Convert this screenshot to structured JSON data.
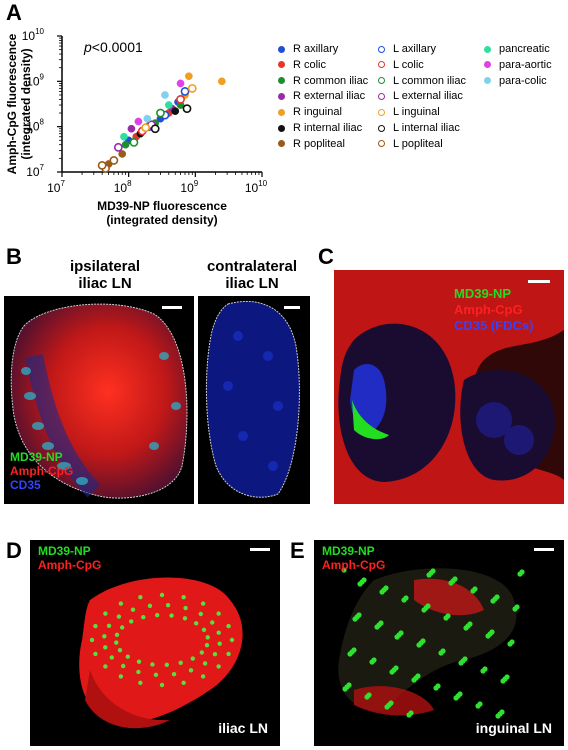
{
  "panels": {
    "A": "A",
    "B": "B",
    "C": "C",
    "D": "D",
    "E": "E"
  },
  "chart_data": {
    "type": "scatter",
    "xlabel": "MD39-NP fluorescence\n(integrated density)",
    "ylabel": "Amph-CpG fluorescence\n(integrated density)",
    "xlabel_lines": [
      "MD39-NP fluorescence",
      "(integrated density)"
    ],
    "ylabel_lines": [
      "Amph-CpG fluorescence",
      "(integrated density)"
    ],
    "x_scale": "log",
    "y_scale": "log",
    "xlim": [
      10000000,
      10000000000
    ],
    "ylim": [
      10000000,
      10000000000
    ],
    "x_ticks": [
      {
        "base": "10",
        "exp": "7"
      },
      {
        "base": "10",
        "exp": "8"
      },
      {
        "base": "10",
        "exp": "9"
      },
      {
        "base": "10",
        "exp": "10"
      }
    ],
    "y_ticks": [
      {
        "base": "10",
        "exp": "7"
      },
      {
        "base": "10",
        "exp": "8"
      },
      {
        "base": "10",
        "exp": "9"
      },
      {
        "base": "10",
        "exp": "10"
      }
    ],
    "annotation": {
      "italic": "p",
      "rest": "<0.0001"
    },
    "series": [
      {
        "name": "R axillary",
        "color": "#1f4fd8",
        "filled": true,
        "points": [
          [
            100000000,
            50000000
          ],
          [
            300000000,
            150000000
          ],
          [
            550000000,
            350000000
          ]
        ]
      },
      {
        "name": "R colic",
        "color": "#e8352b",
        "filled": true,
        "points": [
          [
            130000000,
            60000000
          ],
          [
            400000000,
            200000000
          ]
        ]
      },
      {
        "name": "R common iliac",
        "color": "#1e8f2e",
        "filled": true,
        "points": [
          [
            90000000,
            40000000
          ],
          [
            250000000,
            120000000
          ],
          [
            600000000,
            300000000
          ]
        ]
      },
      {
        "name": "R external iliac",
        "color": "#9a2aa8",
        "filled": true,
        "points": [
          [
            110000000,
            90000000
          ],
          [
            450000000,
            250000000
          ]
        ]
      },
      {
        "name": "R inguinal",
        "color": "#f0a020",
        "filled": true,
        "points": [
          [
            800000000,
            1300000000
          ],
          [
            2500000000,
            1000000000
          ],
          [
            700000000,
            500000000
          ]
        ]
      },
      {
        "name": "R internal iliac",
        "color": "#111111",
        "filled": true,
        "points": [
          [
            150000000,
            70000000
          ],
          [
            500000000,
            220000000
          ]
        ]
      },
      {
        "name": "R popliteal",
        "color": "#9a5a1a",
        "filled": true,
        "points": [
          [
            50000000,
            15000000
          ],
          [
            80000000,
            25000000
          ]
        ]
      },
      {
        "name": "L axillary",
        "color": "#1f4fd8",
        "filled": false,
        "points": [
          [
            200000000,
            100000000
          ],
          [
            700000000,
            600000000
          ],
          [
            350000000,
            180000000
          ]
        ]
      },
      {
        "name": "L colic",
        "color": "#e8352b",
        "filled": false,
        "points": [
          [
            160000000,
            80000000
          ],
          [
            600000000,
            400000000
          ]
        ]
      },
      {
        "name": "L common iliac",
        "color": "#1e8f2e",
        "filled": false,
        "points": [
          [
            120000000,
            45000000
          ],
          [
            300000000,
            200000000
          ]
        ]
      },
      {
        "name": "L external iliac",
        "color": "#9a2aa8",
        "filled": false,
        "points": [
          [
            70000000,
            35000000
          ],
          [
            220000000,
            110000000
          ]
        ]
      },
      {
        "name": "L inguinal",
        "color": "#f0a020",
        "filled": false,
        "points": [
          [
            180000000,
            95000000
          ],
          [
            900000000,
            700000000
          ]
        ]
      },
      {
        "name": "L internal iliac",
        "color": "#111111",
        "filled": false,
        "points": [
          [
            250000000,
            90000000
          ],
          [
            750000000,
            250000000
          ]
        ]
      },
      {
        "name": "L popliteal",
        "color": "#9a5a1a",
        "filled": false,
        "points": [
          [
            45000000,
            12000000
          ],
          [
            60000000,
            18000000
          ],
          [
            40000000,
            14000000
          ]
        ]
      },
      {
        "name": "pancreatic",
        "color": "#2ee0a0",
        "filled": true,
        "points": [
          [
            85000000,
            60000000
          ],
          [
            400000000,
            300000000
          ]
        ]
      },
      {
        "name": "para-aortic",
        "color": "#e040e8",
        "filled": true,
        "points": [
          [
            140000000,
            130000000
          ],
          [
            600000000,
            900000000
          ]
        ]
      },
      {
        "name": "para-colic",
        "color": "#80d0f0",
        "filled": true,
        "points": [
          [
            350000000,
            500000000
          ],
          [
            190000000,
            150000000
          ]
        ]
      }
    ]
  },
  "panel_b": {
    "left_head": [
      "ipsilateral",
      "iliac LN"
    ],
    "right_head": [
      "contralateral",
      "iliac LN"
    ],
    "stains": [
      {
        "text": "MD39-NP",
        "color": "#22dd22"
      },
      {
        "text": "Amph-CpG",
        "color": "#ff2020"
      },
      {
        "text": "CD35",
        "color": "#3344ff"
      }
    ]
  },
  "panel_c": {
    "stains": [
      {
        "text": "MD39-NP",
        "color": "#22dd22"
      },
      {
        "text": "Amph-CpG",
        "color": "#ff2020"
      },
      {
        "text": "CD35 (FDCs)",
        "color": "#3344ff"
      }
    ]
  },
  "panel_d": {
    "stains": [
      {
        "text": "MD39-NP",
        "color": "#22dd22"
      },
      {
        "text": "Amph-CpG",
        "color": "#ff2020"
      }
    ],
    "caption": "iliac LN"
  },
  "panel_e": {
    "stains": [
      {
        "text": "MD39-NP",
        "color": "#22dd22"
      },
      {
        "text": "Amph-CpG",
        "color": "#ff2020"
      }
    ],
    "caption": "inguinal LN"
  }
}
